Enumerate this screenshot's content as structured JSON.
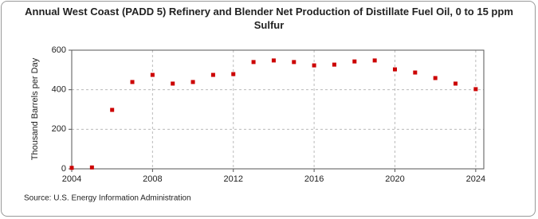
{
  "chart_data": {
    "type": "scatter",
    "title": "Annual West Coast (PADD 5) Refinery and Blender Net Production of Distillate Fuel Oil, 0 to 15 ppm Sulfur",
    "y_label": "Thousand Barrels per Day",
    "source": "Source: U.S. Energy Information Administration",
    "x": [
      2004,
      2005,
      2006,
      2007,
      2008,
      2009,
      2010,
      2011,
      2012,
      2013,
      2014,
      2015,
      2016,
      2017,
      2018,
      2019,
      2020,
      2021,
      2022,
      2023,
      2024
    ],
    "values": [
      5,
      7,
      298,
      439,
      475,
      431,
      439,
      475,
      479,
      540,
      548,
      540,
      523,
      527,
      543,
      548,
      503,
      487,
      459,
      431,
      403
    ],
    "color": "#cc0000",
    "xlim": [
      2004,
      2024.4
    ],
    "xticks": [
      2004,
      2008,
      2012,
      2016,
      2020,
      2024
    ],
    "ylim": [
      0,
      600
    ],
    "yticks": [
      0,
      200,
      400,
      600
    ],
    "grid": true
  }
}
